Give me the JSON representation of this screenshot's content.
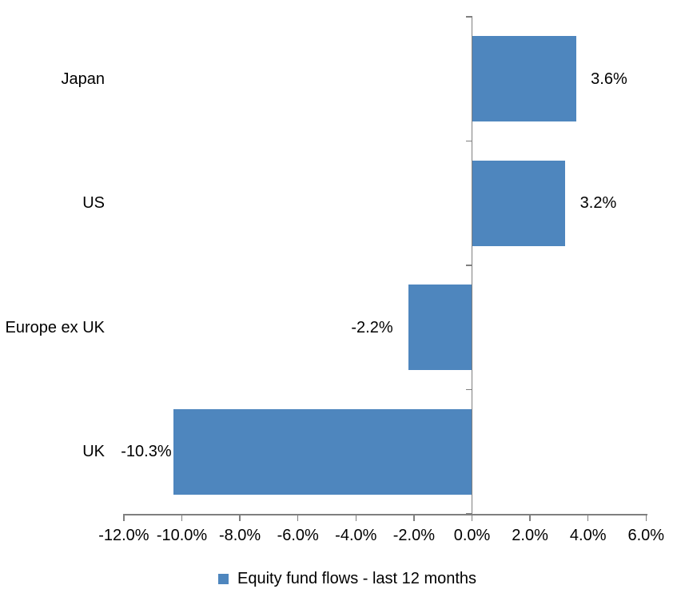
{
  "chart_data": {
    "type": "bar",
    "orientation": "horizontal",
    "title": "",
    "categories": [
      "Japan",
      "US",
      "Europe ex UK",
      "UK"
    ],
    "series": [
      {
        "name": "Equity fund flows - last 12 months",
        "values": [
          3.6,
          3.2,
          -2.2,
          -10.3
        ],
        "data_labels": [
          "3.6%",
          "3.2%",
          "-2.2%",
          "-10.3%"
        ]
      }
    ],
    "value_axis": {
      "min": -12,
      "max": 6,
      "step": 2,
      "tick_labels": [
        "-12.0%",
        "-10.0%",
        "-8.0%",
        "-6.0%",
        "-4.0%",
        "-2.0%",
        "0.0%",
        "2.0%",
        "4.0%",
        "6.0%"
      ],
      "format": "percent"
    },
    "grid": false,
    "legend": {
      "position": "bottom",
      "label": "Equity fund flows - last 12 months"
    },
    "colors": {
      "bar": "#4E86BE",
      "axis": "#7F7F7F",
      "text": "#000000",
      "background": "#FFFFFF"
    }
  }
}
